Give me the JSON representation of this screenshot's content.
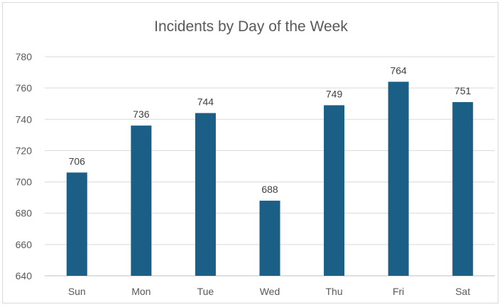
{
  "chart_data": {
    "type": "bar",
    "title": "Incidents by Day of the Week",
    "xlabel": "",
    "ylabel": "",
    "categories": [
      "Sun",
      "Mon",
      "Tue",
      "Wed",
      "Thu",
      "Fri",
      "Sat"
    ],
    "values": [
      706,
      736,
      744,
      688,
      749,
      764,
      751
    ],
    "ylim": [
      640,
      780
    ],
    "yticks": [
      "640",
      "660",
      "680",
      "700",
      "720",
      "740",
      "760",
      "780"
    ],
    "grid": true,
    "data_labels": true,
    "bar_color": "#1b5f86"
  }
}
